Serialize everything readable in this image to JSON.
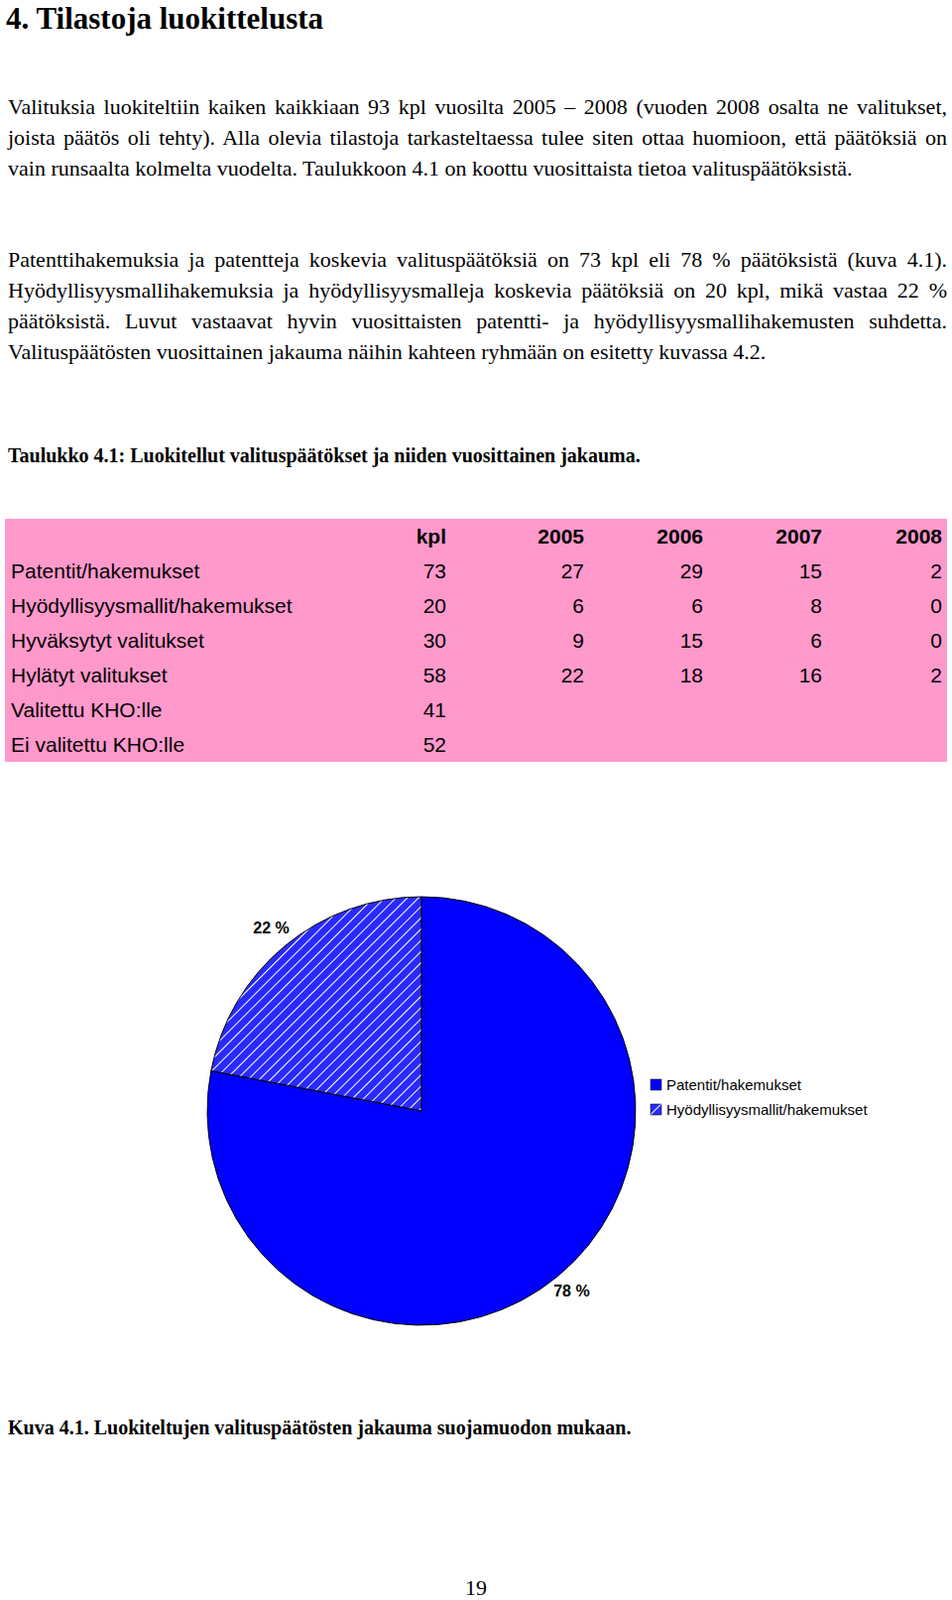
{
  "heading": "4. Tilastoja luokittelusta",
  "paragraphs": [
    "Valituksia luokiteltiin kaiken kaikkiaan 93 kpl vuosilta 2005 – 2008 (vuoden 2008 osalta ne valitukset, joista päätös oli tehty). Alla olevia tilastoja tarkasteltaessa tulee siten ottaa huomioon, että päätöksiä on vain runsaalta kolmelta vuodelta. Taulukkoon 4.1 on koottu vuosittaista tietoa valituspäätöksistä.",
    "Patenttihakemuksia ja patentteja koskevia valituspäätöksiä on 73 kpl eli 78 % päätöksistä (kuva 4.1). Hyödyllisyysmallihakemuksia ja hyödyllisyysmalleja koskevia päätöksiä on 20 kpl, mikä vastaa 22 % päätöksistä. Luvut vastaavat hyvin vuosittaisten patentti- ja hyödyllisyysmallihakemusten suhdetta. Valituspäätösten vuosittainen jakauma näihin kahteen ryhmään on esitetty kuvassa 4.2."
  ],
  "table": {
    "caption": "Taulukko 4.1: Luokitellut valituspäätökset ja niiden vuosittainen jakauma.",
    "header": [
      "kpl",
      "2005",
      "2006",
      "2007",
      "2008"
    ],
    "rows": [
      [
        "Patentit/hakemukset",
        73,
        27,
        29,
        15,
        2
      ],
      [
        "Hyödyllisyysmallit/hakemukset",
        20,
        6,
        6,
        8,
        0
      ],
      [
        "Hyväksytyt valitukset",
        30,
        9,
        15,
        6,
        0
      ],
      [
        "Hylätyt valitukset",
        58,
        22,
        18,
        16,
        2
      ],
      [
        "Valitettu KHO:lle",
        41
      ],
      [
        "Ei valitettu KHO:lle",
        52
      ]
    ]
  },
  "chart_data": {
    "type": "pie",
    "categories": [
      "Patentit/hakemukset",
      "Hyödyllisyysmallit/hakemukset"
    ],
    "values": [
      78,
      22
    ],
    "value_labels": [
      "78 %",
      "22 %"
    ],
    "colors": [
      "#0000ff",
      "#2a2aff"
    ],
    "data_labels": true,
    "legend": "right"
  },
  "figure": {
    "caption": "Kuva 4.1. Luokiteltujen valituspäätösten jakauma suojamuodon mukaan."
  },
  "page_number": "19"
}
